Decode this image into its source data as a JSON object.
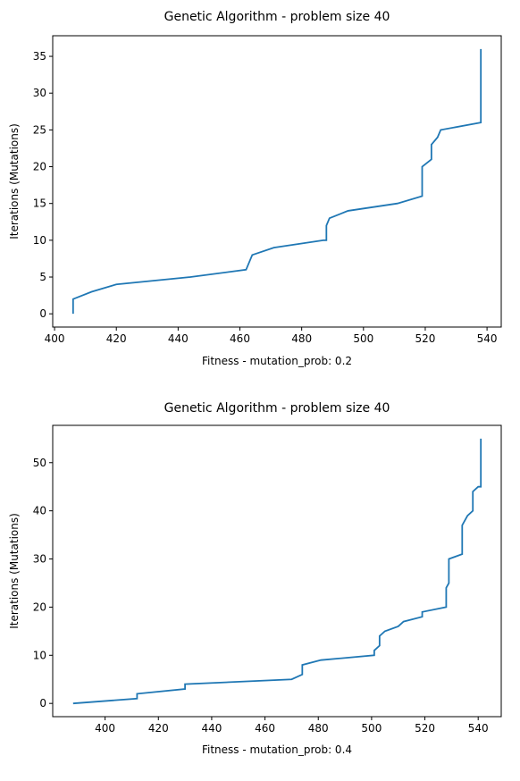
{
  "chart_data": [
    {
      "type": "line",
      "title": "Genetic Algorithm - problem size 40",
      "xlabel": "Fitness - mutation_prob: 0.2",
      "ylabel": "Iterations (Mutations)",
      "color": "#1f77b4",
      "x": [
        406,
        406,
        412,
        420,
        444,
        462,
        463,
        464,
        471,
        487,
        488,
        488,
        489,
        495,
        511,
        519,
        519,
        522,
        522,
        524,
        525,
        538,
        538
      ],
      "values": [
        0,
        2,
        3,
        4,
        5,
        6,
        7,
        8,
        9,
        10,
        10,
        12,
        13,
        14,
        15,
        16,
        20,
        21,
        23,
        24,
        25,
        26,
        36
      ],
      "xlim": [
        399.4,
        544.6
      ],
      "xticks": [
        400,
        420,
        440,
        460,
        480,
        500,
        520,
        540
      ],
      "ylim": [
        -1.8,
        37.8
      ],
      "yticks": [
        0,
        5,
        10,
        15,
        20,
        25,
        30,
        35
      ]
    },
    {
      "type": "line",
      "title": "Genetic Algorithm - problem size 40",
      "xlabel": "Fitness - mutation_prob: 0.4",
      "ylabel": "Iterations (Mutations)",
      "color": "#1f77b4",
      "x": [
        388,
        412,
        412,
        430,
        430,
        470,
        474,
        474,
        481,
        501,
        501,
        503,
        503,
        505,
        510,
        512,
        519,
        519,
        528,
        528,
        529,
        529,
        534,
        534,
        535,
        536,
        538,
        538,
        540,
        541,
        541
      ],
      "values": [
        0,
        1,
        2,
        3,
        4,
        5,
        6,
        8,
        9,
        10,
        11,
        12,
        14,
        15,
        16,
        17,
        18,
        19,
        20,
        24,
        25,
        30,
        31,
        37,
        38,
        39,
        40,
        44,
        45,
        45,
        55
      ],
      "xlim": [
        380.35,
        548.65
      ],
      "xticks": [
        400,
        420,
        440,
        460,
        480,
        500,
        520,
        540
      ],
      "ylim": [
        -2.75,
        57.75
      ],
      "yticks": [
        0,
        10,
        20,
        30,
        40,
        50
      ]
    }
  ]
}
